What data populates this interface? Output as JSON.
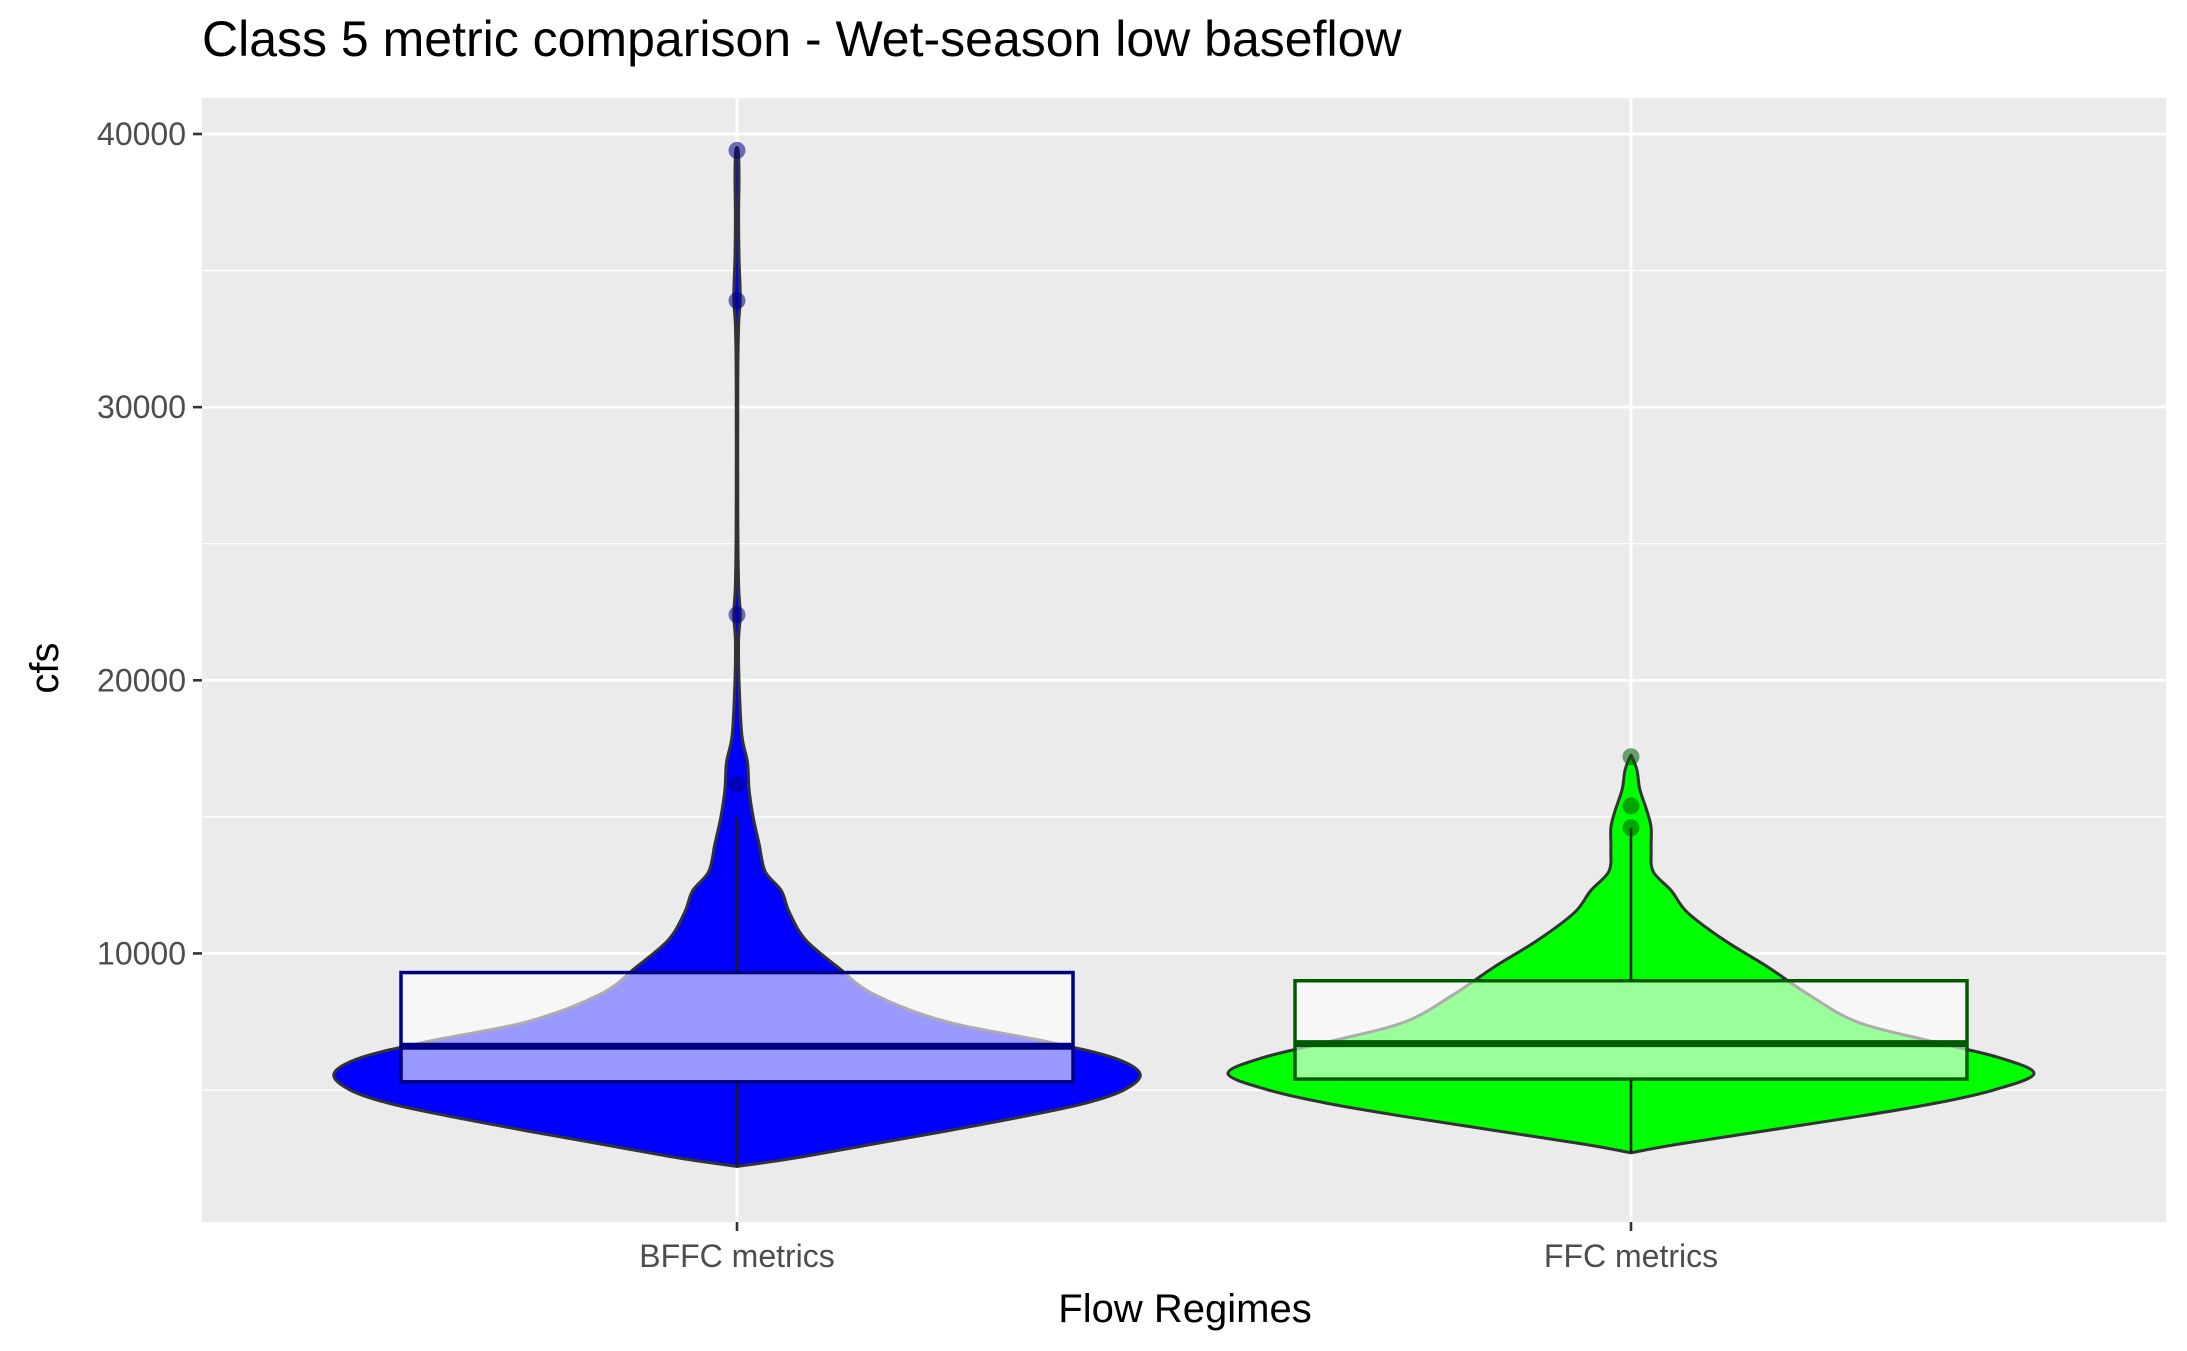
{
  "chart_data": {
    "type": "violin",
    "title": "Class 5 metric comparison - Wet-season low baseflow",
    "xlabel": "Flow Regimes",
    "ylabel": "cfs",
    "ylim": [
      0,
      41300
    ],
    "y_ticks": [
      10000,
      20000,
      30000,
      40000
    ],
    "y_tick_labels": [
      "10000",
      "20000",
      "30000",
      "40000"
    ],
    "categories": [
      "BFFC metrics",
      "FFC metrics"
    ],
    "grid": true,
    "series": [
      {
        "category": "BFFC metrics",
        "fill_color": "#0000ff",
        "box_color": "#000080",
        "box": {
          "q1": 5300,
          "median": 6600,
          "q3": 9300,
          "whisker_low": 2200,
          "whisker_high": 15000
        },
        "outliers": [
          16200,
          22400,
          33900,
          39400
        ],
        "density": [
          [
            2200,
            0.0
          ],
          [
            2500,
            0.14
          ],
          [
            3000,
            0.33
          ],
          [
            3500,
            0.52
          ],
          [
            4000,
            0.7
          ],
          [
            4500,
            0.86
          ],
          [
            5000,
            0.96
          ],
          [
            5600,
            1.0
          ],
          [
            6200,
            0.93
          ],
          [
            6800,
            0.76
          ],
          [
            7500,
            0.52
          ],
          [
            8500,
            0.34
          ],
          [
            9500,
            0.25
          ],
          [
            10500,
            0.17
          ],
          [
            11500,
            0.13
          ],
          [
            12300,
            0.11
          ],
          [
            13000,
            0.07
          ],
          [
            14000,
            0.055
          ],
          [
            15000,
            0.04
          ],
          [
            16000,
            0.03
          ],
          [
            17000,
            0.026
          ],
          [
            18000,
            0.012
          ],
          [
            20000,
            0.005
          ],
          [
            21500,
            0.004
          ],
          [
            22400,
            0.008
          ],
          [
            23500,
            0.004
          ],
          [
            26000,
            0.002
          ],
          [
            31000,
            0.002
          ],
          [
            33000,
            0.004
          ],
          [
            34000,
            0.008
          ],
          [
            35500,
            0.005
          ],
          [
            37000,
            0.004
          ],
          [
            38500,
            0.005
          ],
          [
            39400,
            0.003
          ]
        ]
      },
      {
        "category": "FFC metrics",
        "fill_color": "#00ff00",
        "box_color": "#005a00",
        "box": {
          "q1": 5400,
          "median": 6700,
          "q3": 9000,
          "whisker_low": 2700,
          "whisker_high": 14600
        },
        "outliers": [
          14600,
          15400,
          17200
        ],
        "density": [
          [
            2700,
            0.0
          ],
          [
            3000,
            0.11
          ],
          [
            3500,
            0.33
          ],
          [
            4000,
            0.55
          ],
          [
            4500,
            0.75
          ],
          [
            5000,
            0.9
          ],
          [
            5600,
            1.0
          ],
          [
            6200,
            0.91
          ],
          [
            6800,
            0.74
          ],
          [
            7500,
            0.56
          ],
          [
            8500,
            0.44
          ],
          [
            9500,
            0.34
          ],
          [
            10500,
            0.23
          ],
          [
            11500,
            0.14
          ],
          [
            12300,
            0.1
          ],
          [
            13000,
            0.055
          ],
          [
            13800,
            0.05
          ],
          [
            14600,
            0.05
          ],
          [
            15200,
            0.04
          ],
          [
            16000,
            0.022
          ],
          [
            16700,
            0.015
          ],
          [
            17200,
            0.002
          ]
        ]
      }
    ]
  }
}
